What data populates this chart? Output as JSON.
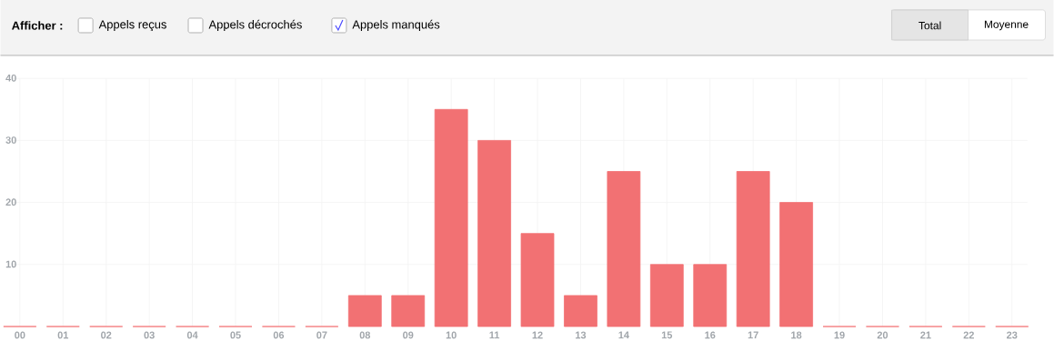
{
  "chart_data": {
    "type": "bar",
    "categories": [
      "00",
      "01",
      "02",
      "03",
      "04",
      "05",
      "06",
      "07",
      "08",
      "09",
      "10",
      "11",
      "12",
      "13",
      "14",
      "15",
      "16",
      "17",
      "18",
      "19",
      "20",
      "21",
      "22",
      "23"
    ],
    "values": [
      0,
      0,
      0,
      0,
      0,
      0,
      0,
      0,
      5,
      5,
      35,
      30,
      15,
      5,
      25,
      10,
      10,
      25,
      20,
      0,
      0,
      0,
      0,
      0
    ],
    "color": "#f27173",
    "ylim": [
      0,
      40
    ],
    "yticks": [
      10,
      20,
      30,
      40
    ],
    "grid": true,
    "annotations": [
      "Afficher :",
      "Appels reçus",
      "Appels décrochés",
      "Appels manqués",
      "Total",
      "Moyenne"
    ]
  }
}
